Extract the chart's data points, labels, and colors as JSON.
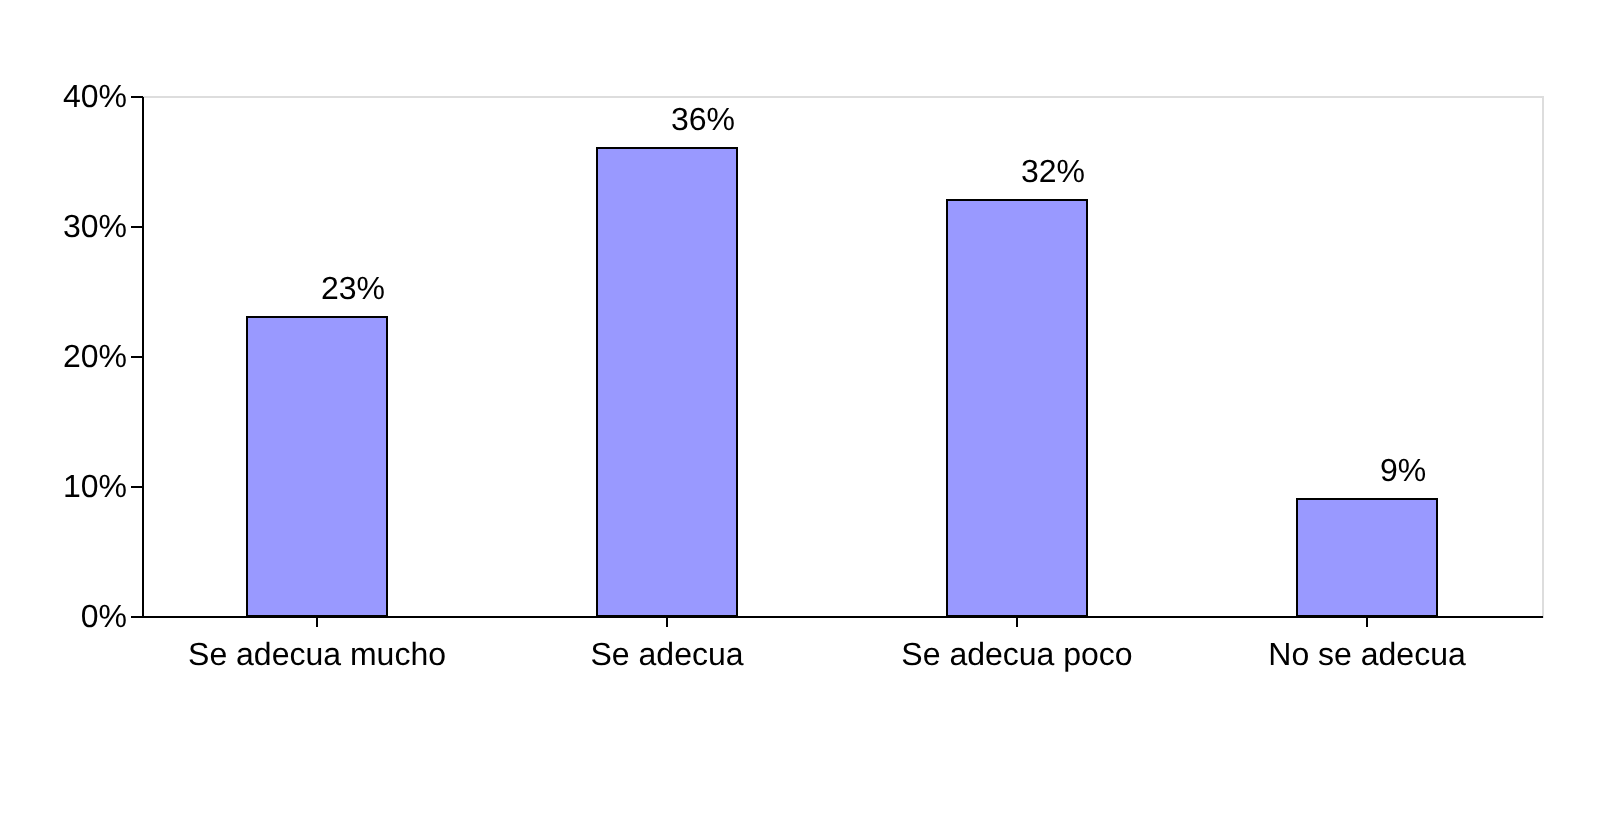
{
  "chart_data": {
    "type": "bar",
    "categories": [
      "Se adecua mucho",
      "Se adecua",
      "Se adecua poco",
      "No se adecua"
    ],
    "values": [
      23,
      36,
      32,
      9
    ],
    "value_labels": [
      "23%",
      "36%",
      "32%",
      "9%"
    ],
    "color": "#9999ff",
    "ylim": [
      0,
      40
    ],
    "yticks": [
      {
        "value": 0,
        "label": "0%"
      },
      {
        "value": 10,
        "label": "10%"
      },
      {
        "value": 20,
        "label": "20%"
      },
      {
        "value": 30,
        "label": "30%"
      },
      {
        "value": 40,
        "label": "40%"
      }
    ],
    "grid": false
  }
}
